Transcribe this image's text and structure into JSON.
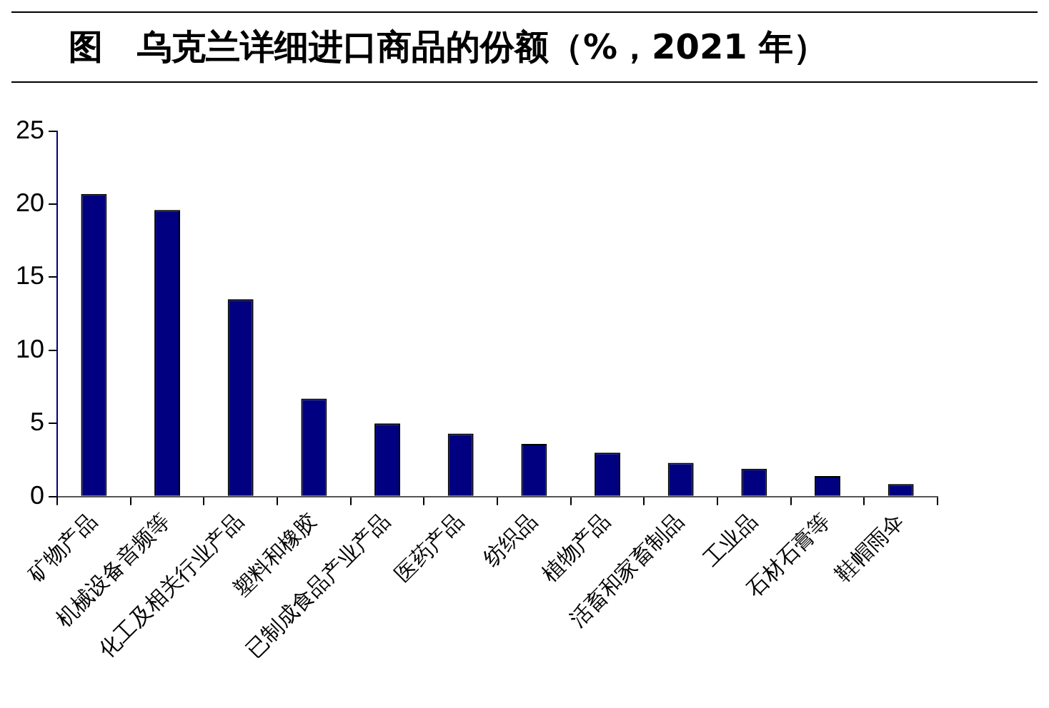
{
  "chart_data": {
    "type": "bar",
    "title": "图　乌克兰详细进口商品的份额（%，2021 年）",
    "categories": [
      "矿物产品",
      "机械设备音频等",
      "化工及相关行业产品",
      "塑料和橡胶",
      "已制成食品产业产品",
      "医药产品",
      "纺织品",
      "植物产品",
      "活畜和家畜制品",
      "工业品",
      "石材石膏等",
      "鞋帽雨伞"
    ],
    "values": [
      20.7,
      19.6,
      13.5,
      6.7,
      5.0,
      4.3,
      3.6,
      3.0,
      2.3,
      1.9,
      1.4,
      0.85
    ],
    "color": "#000080",
    "ylim": [
      0,
      25
    ],
    "yticks": [
      0,
      5,
      10,
      15,
      20,
      25
    ],
    "grid": false
  }
}
